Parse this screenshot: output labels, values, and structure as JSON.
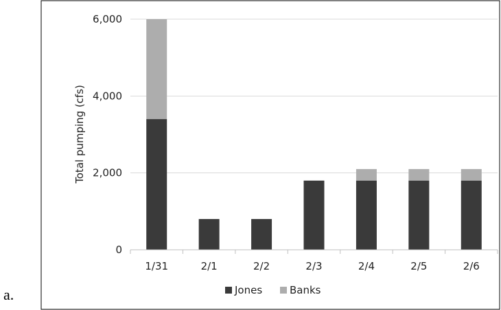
{
  "panel_label": "a.",
  "chart_data": {
    "type": "bar",
    "stacked": true,
    "categories": [
      "1/31",
      "2/1",
      "2/2",
      "2/3",
      "2/4",
      "2/5",
      "2/6"
    ],
    "series": [
      {
        "name": "Jones",
        "color": "#3a3a3a",
        "values": [
          3400,
          800,
          800,
          1800,
          1800,
          1800,
          1800
        ]
      },
      {
        "name": "Banks",
        "color": "#adadad",
        "values": [
          2600,
          0,
          0,
          0,
          300,
          300,
          300
        ]
      }
    ],
    "ylabel": "Total pumping (cfs)",
    "xlabel": "",
    "ylim": [
      0,
      6000
    ],
    "yticks": [
      0,
      2000,
      4000,
      6000
    ],
    "ytick_labels": [
      "0",
      "2,000",
      "4,000",
      "6,000"
    ],
    "grid": true,
    "legend_position": "bottom"
  }
}
